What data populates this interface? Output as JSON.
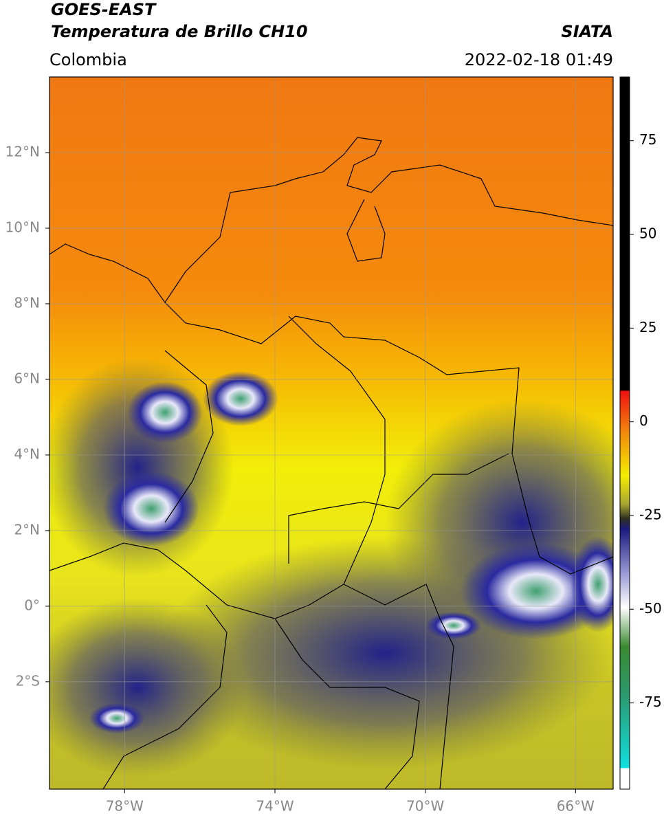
{
  "header": {
    "title": "GOES-EAST",
    "subtitle": "Temperatura de Brillo CH10",
    "source": "SIATA",
    "region": "Colombia",
    "datetime": "2022-02-18 01:49"
  },
  "map": {
    "latlim": [
      -4.84,
      14
    ],
    "lonlim": [
      -80,
      -65
    ],
    "lat_ticks": [
      {
        "value": 12,
        "label": "12°N"
      },
      {
        "value": 10,
        "label": "10°N"
      },
      {
        "value": 8,
        "label": "8°N"
      },
      {
        "value": 6,
        "label": "6°N"
      },
      {
        "value": 4,
        "label": "4°N"
      },
      {
        "value": 2,
        "label": "2°N"
      },
      {
        "value": 0,
        "label": "0°"
      },
      {
        "value": -2,
        "label": "2°S"
      }
    ],
    "lon_ticks": [
      {
        "value": -78,
        "label": "78°W"
      },
      {
        "value": -74,
        "label": "74°W"
      },
      {
        "value": -70,
        "label": "70°W"
      },
      {
        "value": -66,
        "label": "66°W"
      }
    ]
  },
  "colorbar": {
    "lim": [
      -98,
      92
    ],
    "ticks": [
      75,
      50,
      25,
      0,
      -25,
      -50,
      -75
    ]
  }
}
